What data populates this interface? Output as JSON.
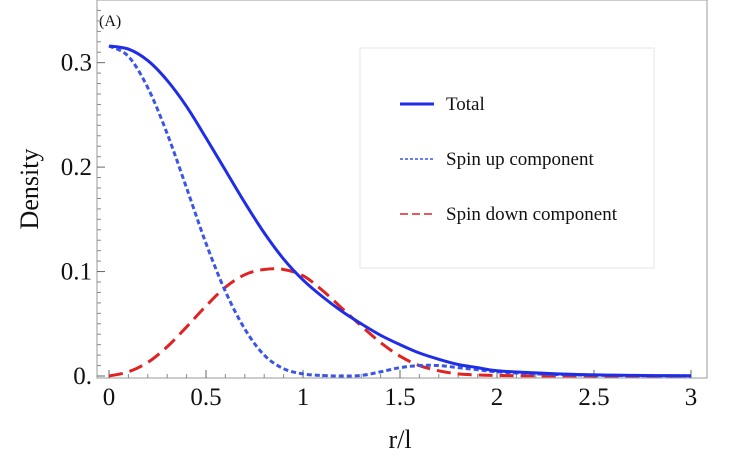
{
  "chart_data": {
    "type": "line",
    "panel_label": "(A)",
    "xlabel": "r/l",
    "ylabel": "Density",
    "xlim": [
      0,
      3
    ],
    "ylim": [
      0,
      0.36
    ],
    "x_ticks": [
      0,
      0.5,
      1,
      1.5,
      2,
      2.5,
      3
    ],
    "x_tick_labels": [
      "0",
      "0.5",
      "1",
      "1.5",
      "2",
      "2.5",
      "3"
    ],
    "y_ticks": [
      0,
      0.1,
      0.2,
      0.3
    ],
    "y_tick_labels": [
      "0.",
      "0.1",
      "0.2",
      "0.3"
    ],
    "grid": false,
    "legend_position": "top-right",
    "series": [
      {
        "name": "Total",
        "color": "#1f2ee6",
        "style": "solid",
        "x": [
          0,
          0.1,
          0.2,
          0.3,
          0.4,
          0.5,
          0.6,
          0.7,
          0.8,
          0.9,
          1.0,
          1.1,
          1.2,
          1.3,
          1.4,
          1.5,
          1.6,
          1.7,
          1.8,
          1.9,
          2.0,
          2.2,
          2.4,
          2.6,
          2.8,
          3.0
        ],
        "y": [
          0.316,
          0.313,
          0.302,
          0.283,
          0.258,
          0.228,
          0.197,
          0.166,
          0.137,
          0.112,
          0.092,
          0.076,
          0.062,
          0.05,
          0.039,
          0.03,
          0.022,
          0.016,
          0.011,
          0.008,
          0.005,
          0.003,
          0.0015,
          0.0008,
          0.0004,
          0.0002
        ]
      },
      {
        "name": "Spin up component",
        "color": "#3a55e8",
        "style": "dotted",
        "x": [
          0,
          0.1,
          0.2,
          0.3,
          0.4,
          0.5,
          0.6,
          0.7,
          0.8,
          0.9,
          1.0,
          1.1,
          1.2,
          1.3,
          1.4,
          1.5,
          1.6,
          1.7,
          1.8,
          1.9,
          2.0,
          2.2,
          2.4,
          2.6,
          2.8,
          3.0
        ],
        "y": [
          0.316,
          0.306,
          0.276,
          0.232,
          0.18,
          0.127,
          0.081,
          0.045,
          0.02,
          0.007,
          0.002,
          0.0005,
          0.0,
          0.0005,
          0.004,
          0.008,
          0.01,
          0.01,
          0.008,
          0.006,
          0.004,
          0.002,
          0.001,
          0.0005,
          0.0002,
          0.0001
        ]
      },
      {
        "name": "Spin down component",
        "color": "#e02222",
        "style": "dashed",
        "x": [
          0,
          0.1,
          0.2,
          0.3,
          0.4,
          0.5,
          0.6,
          0.7,
          0.8,
          0.9,
          1.0,
          1.1,
          1.2,
          1.3,
          1.4,
          1.5,
          1.6,
          1.7,
          1.8,
          1.9,
          2.0,
          2.2,
          2.4,
          2.6,
          2.8,
          3.0
        ],
        "y": [
          0.0,
          0.004,
          0.013,
          0.028,
          0.047,
          0.067,
          0.085,
          0.097,
          0.102,
          0.102,
          0.096,
          0.082,
          0.065,
          0.048,
          0.032,
          0.019,
          0.01,
          0.005,
          0.002,
          0.001,
          0.0005,
          0.0002,
          0.0001,
          0.0,
          0.0,
          0.0
        ]
      }
    ]
  }
}
